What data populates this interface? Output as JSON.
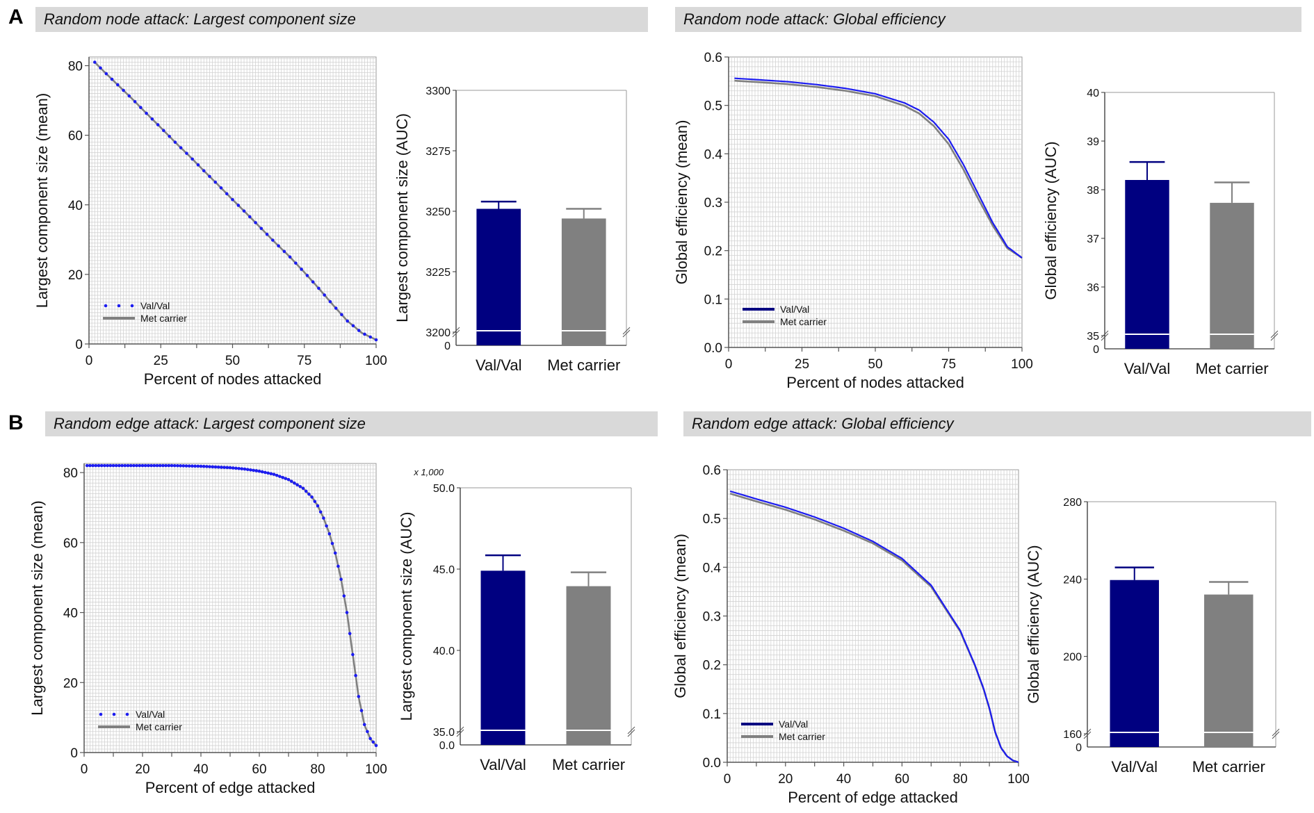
{
  "panels": [
    {
      "letter": "A",
      "headers": [
        "Random node attack: Largest component size",
        "Random node attack: Global efficiency"
      ]
    },
    {
      "letter": "B",
      "headers": [
        "Random edge attack: Largest component size",
        "Random edge attack: Global efficiency"
      ]
    }
  ],
  "colors": {
    "valval_line": "#1c1cf0",
    "valval_bar": "#000080",
    "met_bar": "#808080",
    "met_line": "#808080",
    "header_bg": "#d9d9d9"
  },
  "chart_data": [
    {
      "type": "line",
      "id": "node-lcc",
      "xlabel": "Percent of nodes attacked",
      "ylabel": "Largest component size (mean)",
      "xlim": [
        0,
        100
      ],
      "ylim": [
        0,
        82.5
      ],
      "xticks": [
        0,
        25,
        50,
        75,
        100
      ],
      "yticks": [
        0,
        20,
        40,
        60,
        80
      ],
      "grid": true,
      "legend": "bottom-left",
      "series": [
        {
          "name": "Met carrier",
          "style": "solid",
          "x": [
            2,
            5,
            10,
            15,
            20,
            25,
            30,
            35,
            40,
            45,
            50,
            55,
            60,
            65,
            70,
            75,
            80,
            85,
            90,
            95,
            100
          ],
          "y": [
            81,
            78.5,
            74.5,
            70.5,
            66.3,
            62.2,
            58,
            54,
            49.8,
            45.7,
            41.5,
            37.4,
            33.2,
            29,
            25,
            20.6,
            16,
            11.2,
            6.6,
            3.2,
            1.2
          ]
        },
        {
          "name": "Val/Val",
          "style": "dotted",
          "x": [
            2,
            5,
            10,
            15,
            20,
            25,
            30,
            35,
            40,
            45,
            50,
            55,
            60,
            65,
            70,
            75,
            80,
            85,
            90,
            95,
            100
          ],
          "y": [
            81,
            78.5,
            74.5,
            70.5,
            66.3,
            62.2,
            58,
            54,
            49.8,
            45.7,
            41.5,
            37.4,
            33.2,
            29,
            25,
            20.6,
            16,
            11.2,
            6.6,
            3.2,
            1.2
          ]
        }
      ]
    },
    {
      "type": "bar",
      "id": "node-lcc-auc",
      "ylabel": "Largest component size (AUC)",
      "categories": [
        "Val/Val",
        "Met carrier"
      ],
      "values": [
        3251,
        3247
      ],
      "errors": [
        3254,
        3251
      ],
      "ylim": [
        3200,
        3300
      ],
      "yticks": [
        "3300",
        "3275",
        "3250",
        "3225",
        "3200"
      ],
      "ytick_values": [
        3300,
        3275,
        3250,
        3225,
        3200
      ],
      "zero_label": "0",
      "multiplier": ""
    },
    {
      "type": "line",
      "id": "node-ge",
      "xlabel": "Percent of nodes attacked",
      "ylabel": "Global efficiency (mean)",
      "xlim": [
        0,
        100
      ],
      "ylim": [
        0,
        0.6
      ],
      "xticks": [
        0,
        25,
        50,
        75,
        100
      ],
      "yticks": [
        0.0,
        0.1,
        0.2,
        0.3,
        0.4,
        0.5,
        0.6
      ],
      "ytick_labels": [
        "0.0",
        "0.1",
        "0.2",
        "0.3",
        "0.4",
        "0.5",
        "0.6"
      ],
      "grid": true,
      "legend": "bottom-left",
      "series": [
        {
          "name": "Met carrier",
          "style": "solid",
          "x": [
            2,
            10,
            20,
            30,
            40,
            50,
            60,
            65,
            70,
            75,
            80,
            85,
            90,
            95,
            100
          ],
          "y": [
            0.551,
            0.548,
            0.544,
            0.538,
            0.53,
            0.519,
            0.499,
            0.483,
            0.457,
            0.42,
            0.368,
            0.308,
            0.252,
            0.205,
            0.185
          ]
        },
        {
          "name": "Val/Val",
          "style": "solid",
          "x": [
            2,
            10,
            20,
            30,
            40,
            50,
            60,
            65,
            70,
            75,
            80,
            85,
            90,
            95,
            100
          ],
          "y": [
            0.556,
            0.553,
            0.549,
            0.543,
            0.535,
            0.524,
            0.505,
            0.49,
            0.465,
            0.43,
            0.378,
            0.318,
            0.258,
            0.208,
            0.185
          ]
        }
      ]
    },
    {
      "type": "bar",
      "id": "node-ge-auc",
      "ylabel": "Global efficiency (AUC)",
      "categories": [
        "Val/Val",
        "Met carrier"
      ],
      "values": [
        38.2,
        37.73
      ],
      "errors": [
        38.57,
        38.15
      ],
      "ylim": [
        35,
        40
      ],
      "yticks": [
        "40",
        "39",
        "38",
        "37",
        "36",
        "35"
      ],
      "ytick_values": [
        40,
        39,
        38,
        37,
        36,
        35
      ],
      "zero_label": "0",
      "multiplier": ""
    },
    {
      "type": "line",
      "id": "edge-lcc",
      "xlabel": "Percent of edge attacked",
      "ylabel": "Largest component size (mean)",
      "xlim": [
        0,
        100
      ],
      "ylim": [
        0,
        82.6
      ],
      "xticks": [
        0,
        20,
        40,
        60,
        80,
        100
      ],
      "yticks": [
        0,
        20,
        40,
        60,
        80
      ],
      "grid": true,
      "legend": "bottom-left",
      "series": [
        {
          "name": "Met carrier",
          "style": "solid",
          "x": [
            1,
            10,
            20,
            30,
            40,
            50,
            55,
            60,
            65,
            70,
            75,
            78,
            80,
            82,
            84,
            86,
            88,
            90,
            92,
            94,
            96,
            98,
            100
          ],
          "y": [
            82,
            82,
            82,
            82,
            81.8,
            81.4,
            81,
            80.4,
            79.5,
            78,
            75.5,
            73,
            70.5,
            67,
            62.5,
            57,
            49.5,
            40,
            28,
            16,
            8,
            4,
            2
          ]
        },
        {
          "name": "Val/Val",
          "style": "dotted",
          "x": [
            1,
            10,
            20,
            30,
            40,
            50,
            55,
            60,
            65,
            70,
            75,
            78,
            80,
            82,
            84,
            86,
            88,
            90,
            92,
            94,
            96,
            98,
            100
          ],
          "y": [
            82,
            82,
            82,
            82,
            81.8,
            81.4,
            81,
            80.4,
            79.5,
            78,
            75.5,
            73,
            70.5,
            67,
            62.5,
            57,
            49.5,
            40,
            28,
            16,
            8,
            4,
            2
          ]
        }
      ]
    },
    {
      "type": "bar",
      "id": "edge-lcc-auc",
      "ylabel": "Largest component size (AUC)",
      "categories": [
        "Val/Val",
        "Met carrier"
      ],
      "values": [
        44.9,
        43.95
      ],
      "errors": [
        45.85,
        44.8
      ],
      "ylim": [
        35,
        50
      ],
      "yticks": [
        "50.0",
        "45.0",
        "40.0",
        "35.0"
      ],
      "ytick_values": [
        50,
        45,
        40,
        35
      ],
      "zero_label": "0.0",
      "multiplier": "x 1,000"
    },
    {
      "type": "line",
      "id": "edge-ge",
      "xlabel": "Percent of edge attacked",
      "ylabel": "Global efficiency (mean)",
      "xlim": [
        0,
        100
      ],
      "ylim": [
        0,
        0.6
      ],
      "xticks": [
        0,
        20,
        40,
        60,
        80,
        100
      ],
      "yticks": [
        0.0,
        0.1,
        0.2,
        0.3,
        0.4,
        0.5,
        0.6
      ],
      "ytick_labels": [
        "0.0",
        "0.1",
        "0.2",
        "0.3",
        "0.4",
        "0.5",
        "0.6"
      ],
      "grid": true,
      "legend": "bottom-left",
      "series": [
        {
          "name": "Met carrier",
          "style": "solid",
          "x": [
            1,
            10,
            20,
            30,
            40,
            50,
            60,
            70,
            80,
            85,
            88,
            90,
            92,
            94,
            96,
            98,
            100
          ],
          "y": [
            0.551,
            0.535,
            0.518,
            0.498,
            0.475,
            0.449,
            0.414,
            0.36,
            0.268,
            0.199,
            0.15,
            0.11,
            0.062,
            0.03,
            0.013,
            0.004,
            0.0
          ]
        },
        {
          "name": "Val/Val",
          "style": "solid",
          "x": [
            1,
            10,
            20,
            30,
            40,
            50,
            60,
            70,
            80,
            85,
            88,
            90,
            92,
            94,
            96,
            98,
            100
          ],
          "y": [
            0.556,
            0.54,
            0.523,
            0.503,
            0.48,
            0.453,
            0.418,
            0.363,
            0.27,
            0.2,
            0.151,
            0.111,
            0.062,
            0.03,
            0.013,
            0.004,
            0.0
          ]
        }
      ]
    },
    {
      "type": "bar",
      "id": "edge-ge-auc",
      "ylabel": "Global efficiency (AUC)",
      "categories": [
        "Val/Val",
        "Met carrier"
      ],
      "values": [
        239.5,
        232
      ],
      "errors": [
        246,
        238.5
      ],
      "ylim": [
        160,
        280
      ],
      "yticks": [
        "280",
        "240",
        "200",
        "160"
      ],
      "ytick_values": [
        280,
        240,
        200,
        160
      ],
      "zero_label": "0",
      "multiplier": ""
    }
  ]
}
